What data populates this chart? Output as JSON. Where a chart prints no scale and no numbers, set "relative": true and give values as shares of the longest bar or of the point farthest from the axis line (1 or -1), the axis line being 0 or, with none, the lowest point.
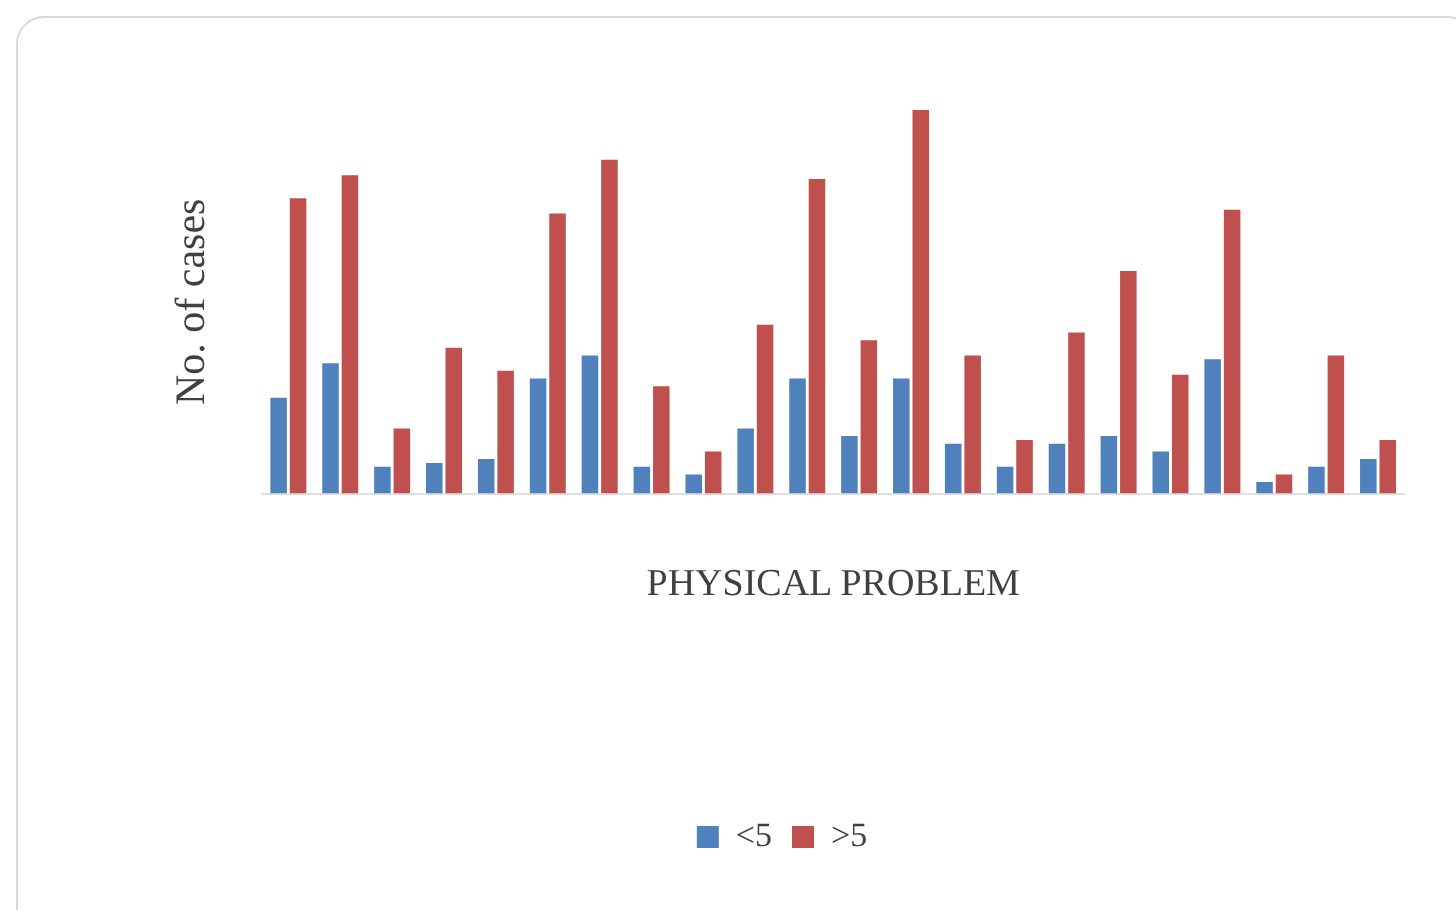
{
  "chart_data": {
    "type": "bar",
    "relative": true,
    "xlabel": "PHYSICAL PROBLEM",
    "ylabel": "No. of cases",
    "categories": [
      null,
      null,
      null,
      null,
      null,
      null,
      null,
      null,
      null,
      null,
      null,
      null,
      null,
      null,
      null,
      null,
      null,
      null,
      null,
      null,
      null,
      null
    ],
    "legend": "bottom",
    "grid": false,
    "series": [
      {
        "name": "<5",
        "color": "#4f81bd",
        "values": [
          0.25,
          0.34,
          0.07,
          0.08,
          0.09,
          0.3,
          0.36,
          0.07,
          0.05,
          0.17,
          0.3,
          0.15,
          0.3,
          0.13,
          0.07,
          0.13,
          0.15,
          0.11,
          0.35,
          0.03,
          0.07,
          0.09
        ]
      },
      {
        "name": ">5",
        "color": "#c0504d",
        "values": [
          0.77,
          0.83,
          0.17,
          0.38,
          0.32,
          0.73,
          0.87,
          0.28,
          0.11,
          0.44,
          0.82,
          0.4,
          1,
          0.36,
          0.14,
          0.42,
          0.58,
          0.31,
          0.74,
          0.05,
          0.36,
          0.14
        ]
      }
    ]
  }
}
